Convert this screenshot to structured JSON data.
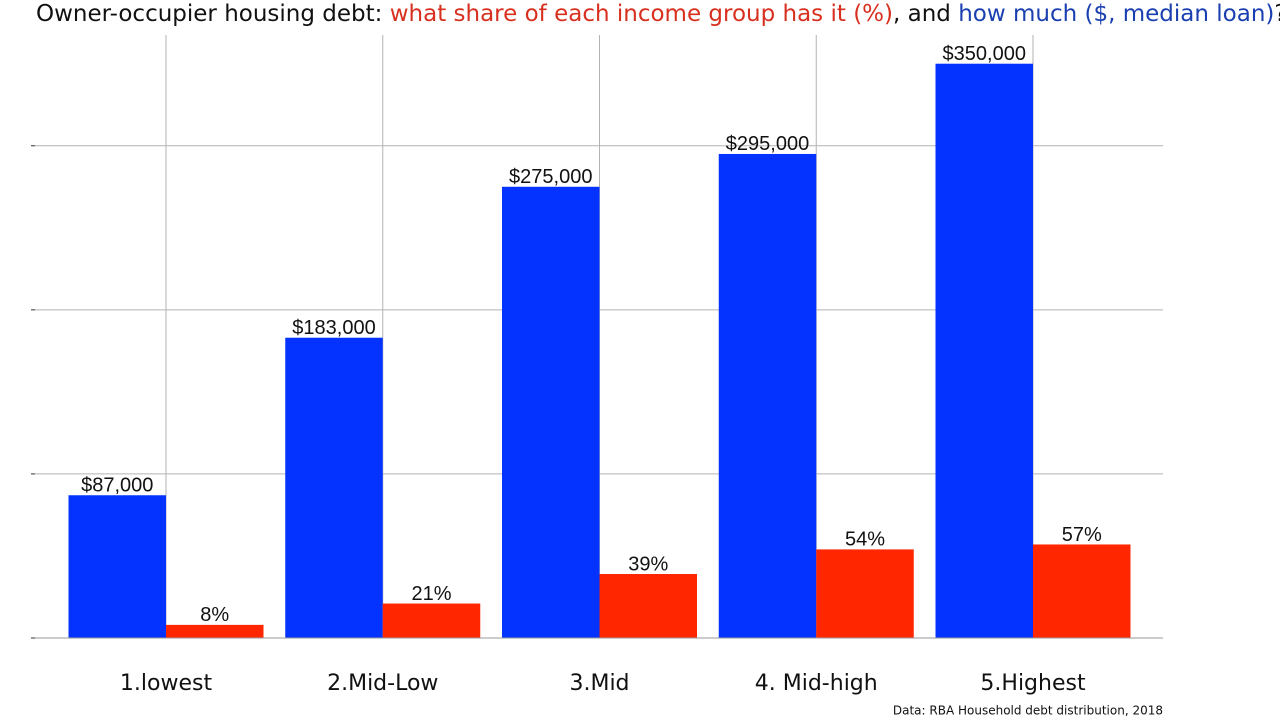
{
  "chart_data": {
    "type": "bar",
    "title": [
      {
        "text": "Owner-occupier housing debt: ",
        "color": "#111111"
      },
      {
        "text": "what share of each income group has it (%)",
        "color": "#d8301f"
      },
      {
        "text": ", and ",
        "color": "#111111"
      },
      {
        "text": "how much ($, median loan)",
        "color": "#1a3fb0"
      },
      {
        "text": "?",
        "color": "#111111"
      }
    ],
    "caption": "Data: RBA Household debt distribution, 2018",
    "categories": [
      "1.lowest",
      "2.Mid-Low",
      "3.Mid",
      "4. Mid-high",
      "5.Highest"
    ],
    "series": [
      {
        "color": "#0433ff",
        "values": [
          87000,
          183000,
          275000,
          295000,
          350000
        ],
        "value_labels": [
          "$87,000",
          "$183,000",
          "$275,000",
          "$295,000",
          "$350,000"
        ]
      },
      {
        "color": "#ff2600",
        "axis": "y2",
        "values": [
          8,
          21,
          39,
          54,
          57
        ],
        "value_labels": [
          "8%",
          "21%",
          "39%",
          "54%",
          "57%"
        ]
      }
    ],
    "ylim": [
      0,
      367500
    ],
    "yticks": [
      0,
      100000,
      200000,
      300000
    ],
    "y2lim": [
      0,
      367.5
    ],
    "ytick_labels": false,
    "grid": true
  }
}
